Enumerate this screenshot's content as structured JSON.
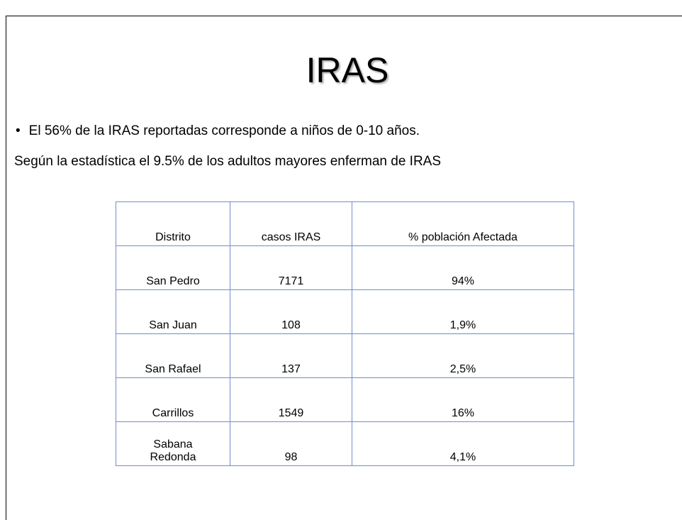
{
  "title": "IRAS",
  "bullet": "El 56% de la IRAS reportadas corresponde a niños de 0-10 años.",
  "text": "Según la estadística el 9.5% de los adultos mayores enferman de IRAS",
  "table": {
    "header": [
      "Distrito",
      "casos IRAS",
      "% población Afectada"
    ],
    "rows": [
      [
        "San Pedro",
        "7171",
        "94%"
      ],
      [
        "San Juan",
        "108",
        "1,9%"
      ],
      [
        "San Rafael",
        "137",
        "2,5%"
      ],
      [
        "Carrillos",
        "1549",
        "16%"
      ],
      [
        "Sabana Redonda",
        "98",
        "4,1%"
      ]
    ]
  }
}
